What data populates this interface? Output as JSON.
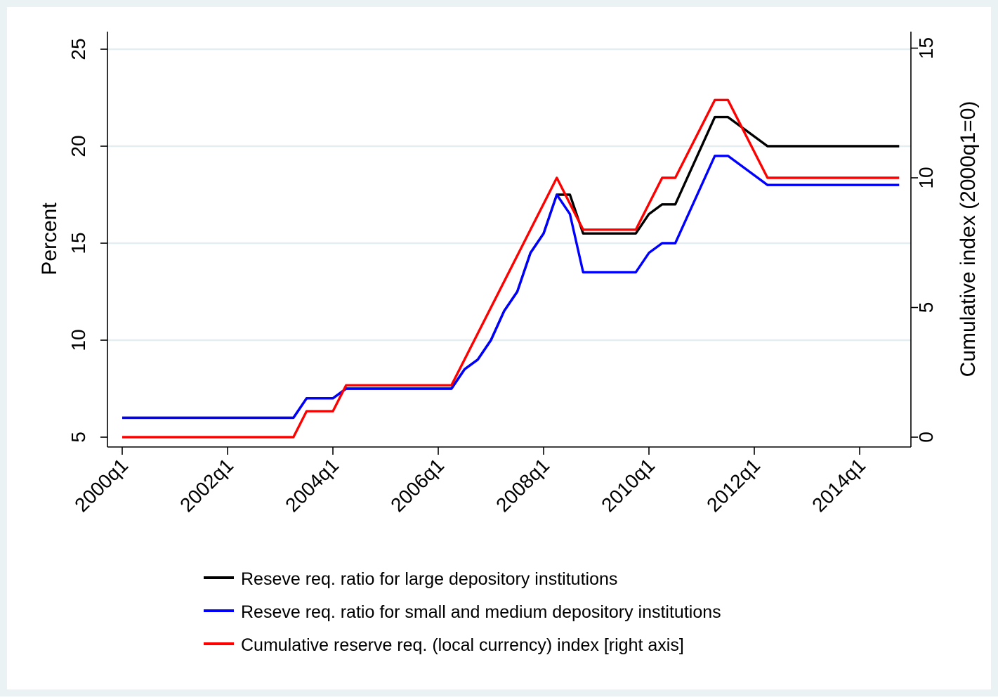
{
  "chart_data": {
    "type": "line",
    "x_labels": [
      "2000q1",
      "2002q1",
      "2004q1",
      "2006q1",
      "2008q1",
      "2010q1",
      "2012q1",
      "2014q1"
    ],
    "x_label_quarter_index": [
      0,
      8,
      16,
      24,
      32,
      40,
      48,
      56
    ],
    "x_range_quarter_index": [
      0,
      59
    ],
    "left_axis": {
      "label": "Percent",
      "ticks": [
        5,
        10,
        15,
        20,
        25
      ],
      "range": [
        5,
        25.5
      ]
    },
    "right_axis": {
      "label": "Cumulative index (2000q1=0)",
      "ticks": [
        0,
        5,
        10,
        15
      ],
      "range": [
        0,
        15.3
      ]
    },
    "grid": "horizontal",
    "legend_position": "bottom",
    "series": [
      {
        "name": "Reseve req. ratio for large depository institutions",
        "axis": "left",
        "color": "#000000",
        "points": [
          [
            0,
            6
          ],
          [
            13,
            6
          ],
          [
            14,
            7
          ],
          [
            16,
            7
          ],
          [
            17,
            7.5
          ],
          [
            25,
            7.5
          ],
          [
            26,
            8.5
          ],
          [
            27,
            9
          ],
          [
            28,
            10
          ],
          [
            29,
            11.5
          ],
          [
            30,
            12.5
          ],
          [
            31,
            14.5
          ],
          [
            32,
            15.5
          ],
          [
            33,
            17.5
          ],
          [
            34,
            17.5
          ],
          [
            35,
            15.5
          ],
          [
            39,
            15.5
          ],
          [
            40,
            16.5
          ],
          [
            41,
            17
          ],
          [
            42,
            17
          ],
          [
            45,
            21.5
          ],
          [
            46,
            21.5
          ],
          [
            49,
            20
          ],
          [
            59,
            20
          ]
        ]
      },
      {
        "name": "Reseve req. ratio for small and medium depository institutions",
        "axis": "left",
        "color": "#0000ff",
        "points": [
          [
            0,
            6
          ],
          [
            13,
            6
          ],
          [
            14,
            7
          ],
          [
            16,
            7
          ],
          [
            17,
            7.5
          ],
          [
            25,
            7.5
          ],
          [
            26,
            8.5
          ],
          [
            27,
            9
          ],
          [
            28,
            10
          ],
          [
            29,
            11.5
          ],
          [
            30,
            12.5
          ],
          [
            31,
            14.5
          ],
          [
            32,
            15.5
          ],
          [
            33,
            17.5
          ],
          [
            34,
            16.5
          ],
          [
            35,
            13.5
          ],
          [
            39,
            13.5
          ],
          [
            40,
            14.5
          ],
          [
            41,
            15
          ],
          [
            42,
            15
          ],
          [
            45,
            19.5
          ],
          [
            46,
            19.5
          ],
          [
            49,
            18
          ],
          [
            59,
            18
          ]
        ]
      },
      {
        "name": "Cumulative reserve req. (local currency) index [right axis]",
        "axis": "right",
        "color": "#ff0000",
        "points": [
          [
            0,
            0
          ],
          [
            13,
            0
          ],
          [
            14,
            1
          ],
          [
            16,
            1
          ],
          [
            17,
            2
          ],
          [
            25,
            2
          ],
          [
            33,
            10
          ],
          [
            35,
            8
          ],
          [
            39,
            8
          ],
          [
            41,
            10
          ],
          [
            42,
            10
          ],
          [
            45,
            13
          ],
          [
            46,
            13
          ],
          [
            49,
            10
          ],
          [
            59,
            10
          ]
        ]
      }
    ]
  }
}
